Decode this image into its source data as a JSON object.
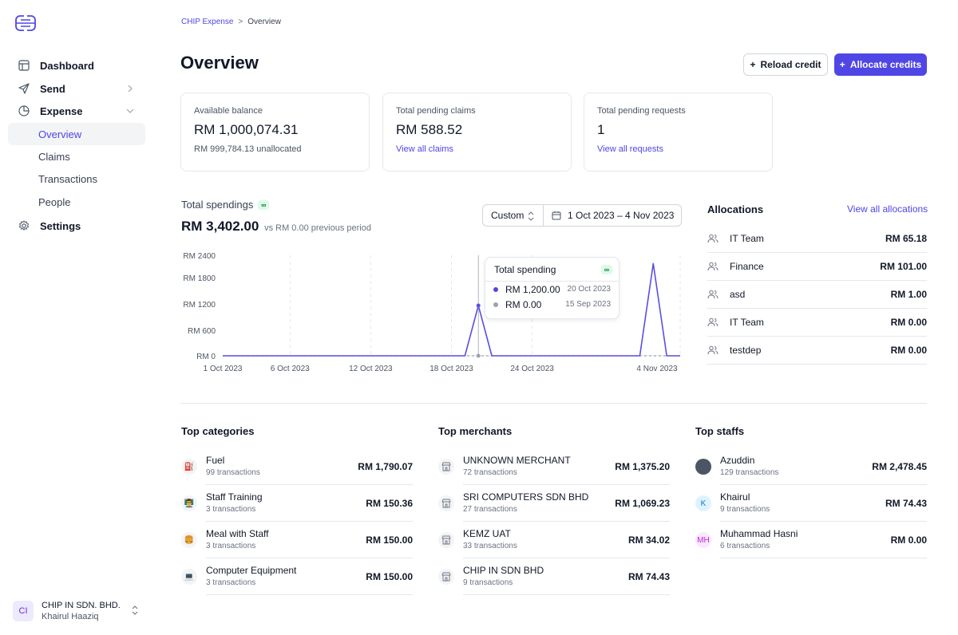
{
  "sidebar": {
    "logo_icon": "chip-logo-icon",
    "items": [
      {
        "label": "Dashboard",
        "icon": "layout-icon"
      },
      {
        "label": "Send",
        "icon": "send-icon"
      },
      {
        "label": "Expense",
        "icon": "pie-icon"
      },
      {
        "label": "Settings",
        "icon": "gear-icon"
      }
    ],
    "expense_sub": [
      {
        "label": "Overview",
        "active": true
      },
      {
        "label": "Claims"
      },
      {
        "label": "Transactions"
      },
      {
        "label": "People"
      }
    ],
    "org": {
      "initials": "CI",
      "name": "CHIP IN SDN. BHD.",
      "user": "Khairul Haaziq"
    }
  },
  "breadcrumb": {
    "parent": "CHIP Expense",
    "separator": ">",
    "current": "Overview"
  },
  "page": {
    "title": "Overview"
  },
  "actions": {
    "reload": "Reload credit",
    "allocate": "Allocate credits"
  },
  "cards": [
    {
      "label": "Available balance",
      "value": "RM 1,000,074.31",
      "sub": "RM 999,784.13 unallocated"
    },
    {
      "label": "Total pending claims",
      "value": "RM 588.52",
      "link": "View all claims"
    },
    {
      "label": "Total pending requests",
      "value": "1",
      "link": "View all requests"
    }
  ],
  "spendings": {
    "label": "Total spendings",
    "badge": "∞",
    "amount": "RM 3,402.00",
    "vs": "vs RM 0.00 previous period",
    "range_mode": "Custom",
    "range": "1 Oct 2023 – 4 Nov 2023"
  },
  "chart_data": {
    "type": "line",
    "y_ticks": [
      "RM 2400",
      "RM 1800",
      "RM 1200",
      "RM 600",
      "RM 0"
    ],
    "x_ticks": [
      "1 Oct 2023",
      "6 Oct 2023",
      "12 Oct 2023",
      "18 Oct 2023",
      "24 Oct 2023",
      "4 Nov 2023"
    ],
    "ylim": [
      0,
      2400
    ],
    "x_days": [
      0,
      18,
      19,
      20,
      31,
      32,
      33,
      34
    ],
    "values": [
      0,
      0,
      1200,
      0,
      0,
      2202,
      0,
      0
    ],
    "previous_values": [
      0,
      0
    ],
    "grid": "vertical-dashed",
    "colors": {
      "current": "#5b4fe0",
      "previous": "#9ca3af"
    }
  },
  "tooltip": {
    "title": "Total spending",
    "badge": "∞",
    "rows": [
      {
        "value": "RM 1,200.00",
        "date": "20 Oct 2023",
        "color": "#4f46e5"
      },
      {
        "value": "RM 0.00",
        "date": "15 Sep 2023",
        "color": "#9ca3af"
      }
    ]
  },
  "allocations": {
    "title": "Allocations",
    "link": "View all allocations",
    "items": [
      {
        "name": "IT Team",
        "amount": "RM 65.18"
      },
      {
        "name": "Finance",
        "amount": "RM 101.00"
      },
      {
        "name": "asd",
        "amount": "RM 1.00"
      },
      {
        "name": "IT Team",
        "amount": "RM 0.00"
      },
      {
        "name": "testdep",
        "amount": "RM 0.00"
      }
    ]
  },
  "top_categories": {
    "title": "Top categories",
    "items": [
      {
        "name": "Fuel",
        "sub": "99 transactions",
        "amount": "RM 1,790.07",
        "icon": "⛽"
      },
      {
        "name": "Staff Training",
        "sub": "3 transactions",
        "amount": "RM 150.36",
        "icon": "👨‍🏫"
      },
      {
        "name": "Meal with Staff",
        "sub": "3 transactions",
        "amount": "RM 150.00",
        "icon": "🍔"
      },
      {
        "name": "Computer Equipment",
        "sub": "3 transactions",
        "amount": "RM 150.00",
        "icon": "💻"
      }
    ]
  },
  "top_merchants": {
    "title": "Top merchants",
    "items": [
      {
        "name": "UNKNOWN MERCHANT",
        "sub": "72 transactions",
        "amount": "RM 1,375.20"
      },
      {
        "name": "SRI COMPUTERS SDN BHD",
        "sub": "27 transactions",
        "amount": "RM 1,069.23"
      },
      {
        "name": "KEMZ UAT",
        "sub": "33 transactions",
        "amount": "RM 34.02"
      },
      {
        "name": "CHIP IN SDN BHD",
        "sub": "9 transactions",
        "amount": "RM 74.43"
      }
    ]
  },
  "top_staffs": {
    "title": "Top staffs",
    "items": [
      {
        "name": "Azuddin",
        "sub": "129 transactions",
        "amount": "RM 2,478.45",
        "avatar": ""
      },
      {
        "name": "Khairul",
        "sub": "9 transactions",
        "amount": "RM 74.43",
        "avatar": "K"
      },
      {
        "name": "Muhammad Hasni",
        "sub": "6 transactions",
        "amount": "RM 0.00",
        "avatar": "MH"
      }
    ]
  }
}
